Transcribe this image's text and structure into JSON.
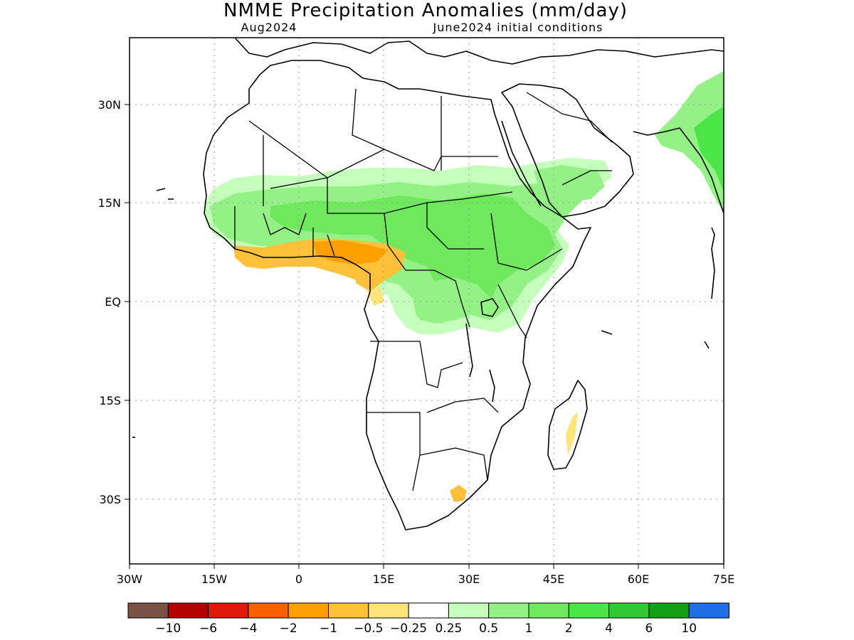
{
  "header": {
    "title": "NMME Precipitation Anomalies (mm/day)",
    "valid_month": "Aug2024",
    "initial_conditions": "June2024 initial conditions"
  },
  "axes": {
    "x_ticks": [
      "30W",
      "15W",
      "0",
      "15E",
      "30E",
      "45E",
      "60E",
      "75E"
    ],
    "y_ticks": [
      "30N",
      "15N",
      "EQ",
      "15S",
      "30S"
    ]
  },
  "colorbar": {
    "colors": [
      "#7a5246",
      "#b40000",
      "#e01a0a",
      "#fa5f00",
      "#ff9f00",
      "#ffc13a",
      "#ffe37b",
      "#ffffff",
      "#c4ffbb",
      "#93f185",
      "#6fe85d",
      "#4be547",
      "#32c834",
      "#14a014",
      "#1e6ee6"
    ],
    "labels": [
      "−10",
      "−6",
      "−4",
      "−2",
      "−1",
      "−0.5",
      "−0.25",
      "0.25",
      "0.5",
      "1",
      "2",
      "4",
      "6",
      "10"
    ]
  },
  "map_meta": {
    "region": "Africa",
    "lon_range": [
      -30,
      75
    ],
    "lat_range": [
      -40,
      40
    ],
    "grid_spacing_deg": 15
  }
}
